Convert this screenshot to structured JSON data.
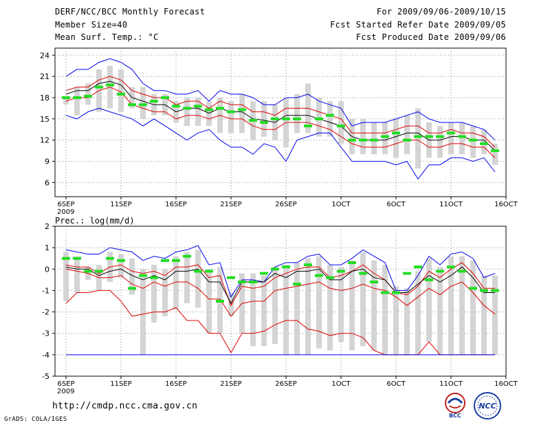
{
  "header": {
    "title": "DERF/NCC/BCC Monthly Forecast",
    "member_size": "Member Size=40",
    "variable": "Mean Surf. Temp.: °C",
    "for_range": "For 2009/09/06-2009/10/15",
    "started_refer": "Fcst Started Refer Date 2009/09/05",
    "produced": "Fcst Produced Date 2009/09/06"
  },
  "footer": {
    "url": "http://cmdp.ncc.cma.gov.cn",
    "credit": "GrADS: COLA/IGES",
    "logo_left_text": "BCC",
    "logo_right_text": "NCC"
  },
  "colors": {
    "envelope": "#0000ee",
    "spread": "#dd0000",
    "mean": "#000000",
    "obs": "#22dd22",
    "box": "#d4d4d4"
  },
  "chart_data": [
    {
      "type": "line",
      "title": "Mean Surf. Temp.: °C",
      "xlabel": "",
      "ylabel": "°C",
      "ylim": [
        4,
        25
      ],
      "yticks": [
        6,
        9,
        12,
        15,
        18,
        21,
        24
      ],
      "x": [
        1,
        2,
        3,
        4,
        5,
        6,
        7,
        8,
        9,
        10,
        11,
        12,
        13,
        14,
        15,
        16,
        17,
        18,
        19,
        20,
        21,
        22,
        23,
        24,
        25,
        26,
        27,
        28,
        29,
        30,
        31,
        32,
        33,
        34,
        35,
        36,
        37,
        38,
        39,
        40
      ],
      "xticks": [
        {
          "x": 1,
          "label": "6SEP",
          "sub": "2009"
        },
        {
          "x": 6,
          "label": "11SEP"
        },
        {
          "x": 11,
          "label": "16SEP"
        },
        {
          "x": 16,
          "label": "21SEP"
        },
        {
          "x": 21,
          "label": "26SEP"
        },
        {
          "x": 26,
          "label": "1OCT"
        },
        {
          "x": 31,
          "label": "6OCT"
        },
        {
          "x": 36,
          "label": "11OCT"
        },
        {
          "x": 41,
          "label": "16OCT"
        }
      ],
      "series": [
        {
          "name": "max",
          "values": [
            21,
            22,
            22,
            23,
            23.5,
            23,
            22,
            20,
            19,
            19,
            18.5,
            18.5,
            19,
            17.5,
            19,
            18.5,
            18.5,
            18,
            17,
            17,
            18,
            18,
            18.5,
            17.5,
            17,
            16.5,
            14,
            14.5,
            14.5,
            14.5,
            15,
            15.5,
            16,
            15,
            14.5,
            14.5,
            14.5,
            14,
            13.5,
            12
          ]
        },
        {
          "name": "upper",
          "values": [
            19,
            19.5,
            19.5,
            20.5,
            21,
            20.5,
            19,
            18.5,
            18,
            18,
            17,
            17.5,
            17.5,
            16.5,
            17.5,
            17,
            17,
            16,
            16,
            15.5,
            16.5,
            16.5,
            16.5,
            16,
            15.5,
            15,
            13,
            13,
            13,
            13,
            13.5,
            14,
            14,
            13,
            13,
            13.5,
            13,
            13,
            12.5,
            11
          ]
        },
        {
          "name": "mean",
          "values": [
            18.5,
            19,
            19,
            20,
            20.3,
            19.8,
            18,
            17.5,
            17,
            17,
            16,
            16.5,
            16.5,
            15.8,
            16.5,
            16,
            16,
            15,
            14.8,
            14.5,
            15.5,
            15.5,
            15.5,
            15,
            14.5,
            14,
            12.5,
            12,
            12,
            12,
            12.5,
            13,
            13,
            12,
            12,
            12.5,
            12.5,
            12,
            12,
            10.5
          ]
        },
        {
          "name": "lower",
          "values": [
            17.5,
            18,
            18,
            19,
            19.5,
            18.8,
            17,
            16.5,
            16,
            16,
            15,
            15.5,
            15.5,
            15,
            15.5,
            15,
            15,
            14,
            13.5,
            13.5,
            14.5,
            14.5,
            14.5,
            14,
            13.5,
            12.5,
            11.5,
            11,
            11,
            11,
            11.5,
            12,
            12,
            11,
            11,
            11.5,
            11.5,
            11,
            11,
            9.5
          ]
        },
        {
          "name": "min",
          "values": [
            15.5,
            15,
            16,
            16.5,
            16,
            15.5,
            15,
            14,
            15,
            14,
            13,
            12,
            13,
            13.5,
            12,
            11,
            11,
            10,
            11.5,
            11,
            9,
            12,
            12.5,
            13,
            13,
            11,
            9,
            9,
            9,
            9,
            8.5,
            9,
            6.5,
            8.5,
            8.5,
            9.5,
            9.5,
            9,
            9.5,
            7.5
          ]
        }
      ],
      "boxes": {
        "low": [
          17,
          15.5,
          17,
          16,
          16.5,
          16,
          16.5,
          15,
          15.5,
          15.5,
          14.5,
          14,
          14,
          14,
          13,
          13,
          13,
          12,
          12.5,
          12,
          11,
          13,
          13,
          12.5,
          12.5,
          11.5,
          10,
          10,
          10,
          10,
          9.5,
          10,
          8,
          9.5,
          9.5,
          10,
          10,
          9.5,
          10,
          8.5
        ],
        "high": [
          18,
          19.5,
          20,
          22,
          22.5,
          22,
          19.5,
          19.5,
          18.5,
          18.5,
          17.5,
          18,
          18,
          17.5,
          18,
          17.5,
          18.5,
          17.5,
          17.5,
          17,
          18,
          18.5,
          20,
          18,
          17.5,
          17.5,
          15,
          15,
          14.5,
          14.5,
          15,
          15.5,
          16.5,
          14.5,
          14,
          14.5,
          14.5,
          14,
          13.5,
          11.5
        ]
      },
      "observed": [
        18,
        18,
        18.2,
        19.5,
        19.8,
        18.5,
        17,
        17,
        17.5,
        18,
        16.8,
        16.5,
        16.8,
        16.3,
        16.5,
        16,
        16.3,
        14.8,
        14.5,
        15,
        15,
        15,
        14,
        15,
        15.5,
        14,
        12,
        12,
        12,
        12.5,
        13,
        12,
        12.5,
        12.5,
        12.5,
        13,
        12.5,
        12,
        11.5,
        10.5
      ]
    },
    {
      "type": "line",
      "title": "Prec.: log(mm/d)",
      "xlabel": "",
      "ylabel": "log(mm/d)",
      "ylim": [
        -5,
        2
      ],
      "yticks": [
        -5,
        -4,
        -3,
        -2,
        -1,
        0,
        1,
        2
      ],
      "x": [
        1,
        2,
        3,
        4,
        5,
        6,
        7,
        8,
        9,
        10,
        11,
        12,
        13,
        14,
        15,
        16,
        17,
        18,
        19,
        20,
        21,
        22,
        23,
        24,
        25,
        26,
        27,
        28,
        29,
        30,
        31,
        32,
        33,
        34,
        35,
        36,
        37,
        38,
        39,
        40
      ],
      "xticks": [
        {
          "x": 1,
          "label": "6SEP",
          "sub": "2009"
        },
        {
          "x": 6,
          "label": "11SEP"
        },
        {
          "x": 11,
          "label": "16SEP"
        },
        {
          "x": 16,
          "label": "21SEP"
        },
        {
          "x": 21,
          "label": "26SEP"
        },
        {
          "x": 26,
          "label": "1OCT"
        },
        {
          "x": 31,
          "label": "6OCT"
        },
        {
          "x": 36,
          "label": "11OCT"
        },
        {
          "x": 41,
          "label": "16OCT"
        }
      ],
      "series": [
        {
          "name": "max",
          "values": [
            0.9,
            0.8,
            0.7,
            0.7,
            1.0,
            0.9,
            0.8,
            0.4,
            0.6,
            0.5,
            0.8,
            0.9,
            1.1,
            0.2,
            0.3,
            -1.3,
            -0.5,
            -0.5,
            -0.6,
            0.1,
            0.3,
            0.3,
            0.6,
            0.7,
            0.2,
            0.2,
            0.5,
            0.9,
            0.6,
            0.3,
            -1.0,
            -1.0,
            -0.3,
            0.6,
            0.2,
            0.7,
            0.8,
            0.5,
            -0.4,
            -0.2
          ]
        },
        {
          "name": "upper",
          "values": [
            0.2,
            0.1,
            0.1,
            -0.2,
            0.1,
            0.2,
            -0.1,
            -0.2,
            -0.1,
            -0.3,
            0.1,
            0.1,
            0.2,
            -0.4,
            -0.3,
            -1.7,
            -0.8,
            -0.9,
            -0.8,
            -0.4,
            -0.2,
            0.0,
            0.1,
            0.1,
            -0.4,
            -0.3,
            -0.1,
            0.2,
            -0.2,
            -0.5,
            -1.1,
            -1.2,
            -0.8,
            -0.1,
            -0.4,
            0.0,
            0.3,
            -0.2,
            -0.9,
            -0.9
          ]
        },
        {
          "name": "mean",
          "values": [
            0.1,
            0.0,
            0.0,
            -0.3,
            -0.1,
            0.0,
            -0.3,
            -0.5,
            -0.3,
            -0.5,
            -0.1,
            -0.1,
            0.0,
            -0.6,
            -0.6,
            -1.6,
            -0.6,
            -0.6,
            -0.6,
            -0.2,
            -0.4,
            -0.1,
            -0.1,
            0.0,
            -0.5,
            -0.5,
            -0.1,
            0.0,
            -0.4,
            -0.5,
            -1.1,
            -1.1,
            -0.7,
            -0.3,
            -0.6,
            -0.3,
            0.1,
            -0.4,
            -1.1,
            -1.1
          ]
        },
        {
          "name": "lower",
          "values": [
            0.0,
            -0.1,
            -0.2,
            -0.4,
            -0.4,
            -0.3,
            -0.7,
            -0.9,
            -0.6,
            -0.8,
            -0.6,
            -0.6,
            -0.9,
            -1.4,
            -1.4,
            -2.2,
            -1.6,
            -1.5,
            -1.5,
            -1.0,
            -0.9,
            -0.8,
            -0.7,
            -0.6,
            -0.9,
            -1.0,
            -0.9,
            -0.7,
            -0.9,
            -1.0,
            -1.3,
            -1.7,
            -1.3,
            -0.9,
            -1.2,
            -0.8,
            -0.6,
            -1.1,
            -1.7,
            -2.1
          ]
        },
        {
          "name": "min",
          "values": [
            -1.6,
            -1.1,
            -1.1,
            -1.0,
            -1.0,
            -1.5,
            -2.2,
            -2.1,
            -2.0,
            -2.0,
            -1.8,
            -2.4,
            -2.4,
            -3.0,
            -3.0,
            -3.9,
            -3.0,
            -3.0,
            -2.9,
            -2.6,
            -2.4,
            -2.4,
            -2.8,
            -2.9,
            -3.1,
            -3.0,
            -3.0,
            -3.2,
            -3.8,
            -4.0,
            -4.0,
            -4.0,
            -4.0,
            -3.4,
            -4.0,
            -4.0,
            -4.0,
            -4.0,
            -4.0,
            -4.0
          ]
        },
        {
          "name": "floor",
          "values": [
            -4,
            -4,
            -4,
            -4,
            -4,
            -4,
            -4,
            -4,
            -4,
            -4,
            -4,
            -4,
            -4,
            -4,
            -4,
            -4,
            -4,
            -4,
            -4,
            -4,
            -4,
            -4,
            -4,
            -4,
            -4,
            -4,
            -4,
            -4,
            -4,
            -4,
            -4,
            -4,
            -4,
            -4,
            -4,
            -4,
            -4,
            -4,
            -4,
            -4
          ]
        }
      ],
      "boxes": {
        "low": [
          -1.5,
          -1.1,
          -0.5,
          -1.0,
          -0.6,
          -0.4,
          -1.2,
          -4.0,
          -2.5,
          -2.2,
          -1.9,
          -1.6,
          -1.8,
          -3.0,
          -3.0,
          -2.2,
          -3.0,
          -3.6,
          -3.6,
          -3.5,
          -4.0,
          -4.0,
          -4.0,
          -3.7,
          -3.8,
          -3.4,
          -3.8,
          -3.6,
          -3.8,
          -4.0,
          -4.0,
          -4.0,
          -4.0,
          -3.4,
          -4.0,
          -4.0,
          -4.0,
          -4.0,
          -4.0,
          -4.0
        ],
        "high": [
          0.8,
          0.6,
          0.1,
          0.2,
          0.8,
          0.7,
          0.5,
          0.0,
          0.2,
          0.0,
          0.6,
          0.8,
          0.9,
          0.0,
          0.1,
          -1.1,
          -0.2,
          -0.2,
          -0.3,
          0.1,
          0.2,
          0.3,
          0.5,
          0.6,
          0.2,
          0.1,
          0.4,
          0.8,
          0.4,
          0.2,
          -0.8,
          -0.9,
          -0.1,
          0.5,
          0.1,
          0.6,
          0.6,
          0.4,
          -0.3,
          -0.3
        ]
      },
      "observed": [
        0.5,
        0.5,
        -0.1,
        -0.1,
        0.5,
        0.4,
        -0.9,
        -0.3,
        -0.4,
        0.4,
        0.4,
        0.6,
        -0.1,
        -0.1,
        -1.5,
        -0.4,
        -0.6,
        -0.6,
        -0.2,
        0.0,
        0.1,
        -0.7,
        0.2,
        -0.3,
        -0.4,
        -0.1,
        0.3,
        -0.2,
        -0.6,
        -1.1,
        -1.1,
        -0.2,
        0.1,
        -0.5,
        -0.1,
        0.1,
        -0.1,
        -0.9,
        -1.0,
        -1.0
      ]
    }
  ]
}
